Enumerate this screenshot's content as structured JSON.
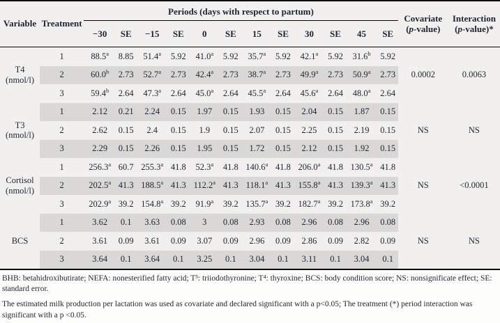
{
  "table": {
    "periods_header": "Periods (days with respect to partum)",
    "col_headers": {
      "variable": "Variable",
      "treatment": "Treatment",
      "periods": [
        "−30",
        "SE",
        "−15",
        "SE",
        "0",
        "SE",
        "15",
        "SE",
        "30",
        "SE",
        "45",
        "SE"
      ],
      "covariate_line1": "Covariate",
      "covariate_line2": "(p-value)",
      "interaction_line1": "Interaction",
      "interaction_line2": "(p-value)*"
    },
    "groups": [
      {
        "variable": "T4",
        "unit": "(nmol/l)",
        "covariate": "0.0002",
        "interaction": "0.0063",
        "rows": [
          {
            "treatment": "1",
            "cells": [
              "88.5^a",
              "8.85",
              "51.4^a",
              "5.92",
              "41.0^a",
              "5.92",
              "35.7^a",
              "5.92",
              "42.1^a",
              "5.92",
              "31.6^b",
              "5.92"
            ]
          },
          {
            "treatment": "2",
            "cells": [
              "60.0^b",
              "2.73",
              "52.7^a",
              "2.73",
              "42.4^a",
              "2.73",
              "38.7^a",
              "2.73",
              "49.9^a",
              "2.73",
              "50.9^a",
              "2.73"
            ]
          },
          {
            "treatment": "3",
            "cells": [
              "59.4^b",
              "2.64",
              "47.3^a",
              "2.64",
              "45.0^a",
              "2.64",
              "45.5^a",
              "2.64",
              "45.6^a",
              "2.64",
              "48.0^a",
              "2.64"
            ]
          }
        ]
      },
      {
        "variable": "T3",
        "unit": "(nmol/l)",
        "covariate": "NS",
        "interaction": "NS",
        "rows": [
          {
            "treatment": "1",
            "cells": [
              "2.12",
              "0.21",
              "2.24",
              "0.15",
              "1.97",
              "0.15",
              "1.93",
              "0.15",
              "2.04",
              "0.15",
              "1.87",
              "0.15"
            ]
          },
          {
            "treatment": "2",
            "cells": [
              "2.62",
              "0.15",
              "2.4",
              "0.15",
              "1.9",
              "0.15",
              "2.07",
              "0.15",
              "2.25",
              "0.15",
              "2.19",
              "0.15"
            ]
          },
          {
            "treatment": "3",
            "cells": [
              "2.29",
              "0.15",
              "2.26",
              "0.15",
              "1.95",
              "0.15",
              "1.72",
              "0.15",
              "2.12",
              "0.15",
              "1.92",
              "0.15"
            ]
          }
        ]
      },
      {
        "variable": "Cortisol",
        "unit": "(nmol/l)",
        "covariate": "NS",
        "interaction": "<0.0001",
        "rows": [
          {
            "treatment": "1",
            "cells": [
              "256.3^a",
              "60.7",
              "255.3^a",
              "41.8",
              "52.3^a",
              "41.8",
              "140.6^a",
              "41.8",
              "206.0^a",
              "41.8",
              "130.5^a",
              "41.8"
            ]
          },
          {
            "treatment": "2",
            "cells": [
              "202.5^a",
              "41.3",
              "188.5^a",
              "41.3",
              "112.2^a",
              "41.3",
              "118.1^a",
              "41.3",
              "155.8^a",
              "41.3",
              "139.3^a",
              "41.3"
            ]
          },
          {
            "treatment": "3",
            "cells": [
              "202.9^a",
              "39.2",
              "154.8^a",
              "39.2",
              "91.9^a",
              "39.2",
              "135.7^a",
              "39.2",
              "182.7^a",
              "39.2",
              "173.8^a",
              "39.2"
            ]
          }
        ]
      },
      {
        "variable": "BCS",
        "unit": "",
        "covariate": "NS",
        "interaction": "NS",
        "rows": [
          {
            "treatment": "1",
            "cells": [
              "3.62",
              "0.1",
              "3.63",
              "0.08",
              "3",
              "0.08",
              "2.93",
              "0.08",
              "2.96",
              "0.08",
              "2.96",
              "0.08"
            ]
          },
          {
            "treatment": "2",
            "cells": [
              "3.61",
              "0.09",
              "3.61",
              "0.09",
              "3.07",
              "0.09",
              "2.96",
              "0.09",
              "2.86",
              "0.09",
              "2.82",
              "0.09"
            ]
          },
          {
            "treatment": "3",
            "cells": [
              "3.64",
              "0.1",
              "3.64",
              "0.1",
              "3.25",
              "0.1",
              "3.04",
              "0.1",
              "3.11",
              "0.1",
              "3.04",
              "0.1"
            ]
          }
        ]
      }
    ]
  },
  "footnotes": {
    "abbreviations": "BHB: betahidroxibutirate; NEFA: nonesterified fatty acid; T³: triiodothyronine; T⁴: thyroxine; BCS: body condition score; NS: nonsignificate effect; SE: standard error.",
    "covariate_note": "The estimated milk production per lactation was used as covariate and declared significant with a p<0.05; The treatment (*) period interaction was significant with a p <0.05."
  }
}
